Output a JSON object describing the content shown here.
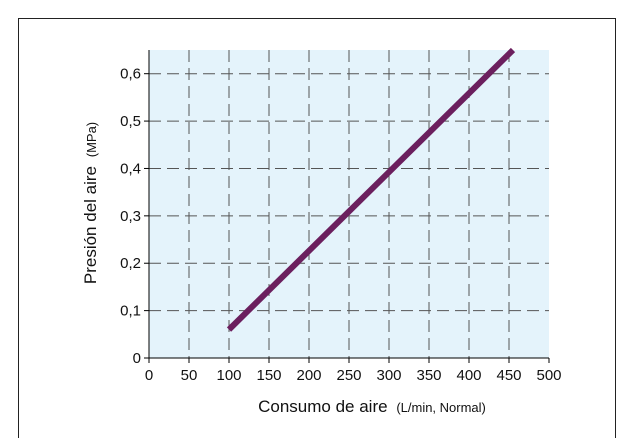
{
  "chart_data": {
    "type": "line",
    "xlabel_main": "Consumo de aire",
    "xlabel_unit": "(L/min, Normal)",
    "ylabel_main": "Presión del aire",
    "ylabel_unit": "(MPa)",
    "xlim": [
      0,
      500
    ],
    "ylim": [
      0,
      0.65
    ],
    "x_ticks": [
      0,
      50,
      100,
      150,
      200,
      250,
      300,
      350,
      400,
      450,
      500
    ],
    "x_tick_labels": [
      "0",
      "50",
      "100",
      "150",
      "200",
      "250",
      "300",
      "350",
      "400",
      "450",
      "500"
    ],
    "y_ticks": [
      0,
      0.1,
      0.2,
      0.3,
      0.4,
      0.5,
      0.6
    ],
    "y_tick_labels": [
      "0",
      "0,1",
      "0,2",
      "0,3",
      "0,4",
      "0,5",
      "0,6"
    ],
    "grid": true,
    "colors": {
      "plot_background": "#e4f3fb",
      "line": "#6b1f5e",
      "grid": "#555555"
    },
    "series": [
      {
        "x": [
          100,
          455
        ],
        "y": [
          0.06,
          0.65
        ]
      }
    ]
  }
}
